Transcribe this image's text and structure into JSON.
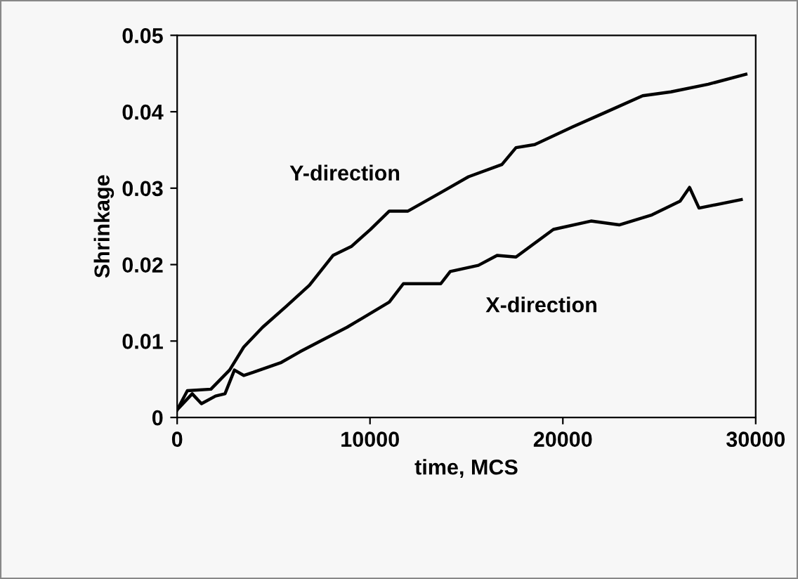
{
  "chart_data": {
    "type": "line",
    "xlabel": "time, MCS",
    "ylabel": "Shrinkage",
    "xlim": [
      0,
      30000
    ],
    "xticks": [
      0,
      10000,
      20000,
      30000
    ],
    "ylim": [
      0,
      0.05
    ],
    "yticks": [
      0,
      0.01,
      0.02,
      0.03,
      0.04,
      0.05
    ],
    "grid": false,
    "legend": false,
    "marker": "none",
    "line_style": "solid",
    "series": [
      {
        "name": "Y-direction",
        "color": "#000000",
        "x": [
          0,
          530,
          1750,
          2720,
          3450,
          4430,
          5640,
          6860,
          8080,
          9050,
          10020,
          11000,
          11970,
          13650,
          15110,
          16840,
          17570,
          18540,
          20490,
          22190,
          24140,
          25600,
          27540,
          29490
        ],
        "values": [
          0.001,
          0.0035,
          0.0037,
          0.0062,
          0.0092,
          0.0118,
          0.0145,
          0.0173,
          0.0212,
          0.0224,
          0.0246,
          0.027,
          0.027,
          0.0294,
          0.0315,
          0.0331,
          0.0353,
          0.0357,
          0.038,
          0.0399,
          0.0421,
          0.0426,
          0.0436,
          0.0449
        ]
      },
      {
        "name": "X-direction",
        "color": "#000000",
        "x": [
          0,
          780,
          1260,
          1990,
          2480,
          2970,
          3450,
          3940,
          5400,
          6370,
          7350,
          8810,
          9540,
          11000,
          11730,
          13670,
          14160,
          15620,
          16590,
          17570,
          19510,
          21460,
          22920,
          24620,
          26080,
          26570,
          27060,
          29250
        ],
        "values": [
          0.001,
          0.0031,
          0.0018,
          0.0028,
          0.0031,
          0.0062,
          0.0055,
          0.0059,
          0.0072,
          0.0086,
          0.0099,
          0.0118,
          0.0129,
          0.0151,
          0.0175,
          0.0175,
          0.0191,
          0.0199,
          0.0212,
          0.021,
          0.0246,
          0.0257,
          0.0252,
          0.0265,
          0.0283,
          0.0301,
          0.0274,
          0.0285
        ]
      }
    ]
  }
}
